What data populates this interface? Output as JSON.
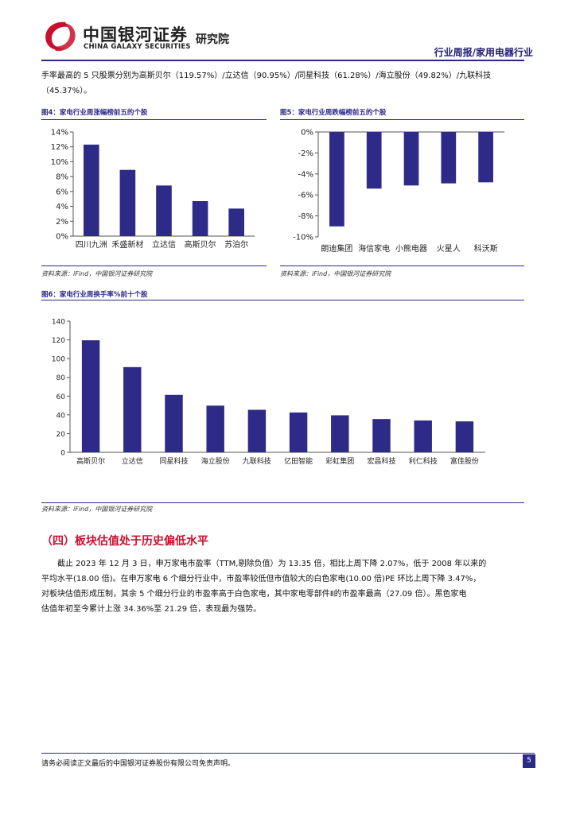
{
  "header": {
    "logo_cn": "中国银河证券",
    "logo_en": "CHINA GALAXY SECURITIES",
    "institute": "研究院",
    "report_type": "行业周报/家用电器行业",
    "colors": {
      "brand_red": "#c8102e",
      "brand_navy": "#2b2a86"
    }
  },
  "intro": {
    "line1": "手率最高的 5 只股票分别为高斯贝尔（119.57%）/立达信（90.95%）/同星科技（61.28%）/海立股份（49.82%）/九联科技",
    "line2": "（45.37%）。"
  },
  "fig4": {
    "num": "图4：",
    "title": "家电行业周涨幅榜前五的个股",
    "source": "资料来源：iFind，中国银河证券研究院"
  },
  "fig5": {
    "num": "图5：",
    "title": "家电行业周跌幅榜前五的个股",
    "source": "资料来源：iFind，中国银河证券研究院"
  },
  "fig6": {
    "num": "图6：",
    "title": "家电行业周换手率%前十个股",
    "source": "资料来源：iFind，中国银河证券研究院"
  },
  "chart_data": [
    {
      "type": "bar",
      "title": "家电行业周涨幅榜前五的个股",
      "categories": [
        "四川九洲",
        "禾盛新材",
        "立达信",
        "高斯贝尔",
        "苏泊尔"
      ],
      "values": [
        12.3,
        8.9,
        6.8,
        4.7,
        3.7
      ],
      "ylim": [
        0,
        14
      ],
      "yticks": [
        "0%",
        "2%",
        "4%",
        "6%",
        "8%",
        "10%",
        "12%",
        "14%"
      ],
      "grid": false,
      "color": "#2e2a87"
    },
    {
      "type": "bar",
      "title": "家电行业周跌幅榜前五的个股",
      "categories": [
        "朗迪集团",
        "海信家电",
        "小熊电器",
        "火星人",
        "科沃斯"
      ],
      "values": [
        -9.0,
        -5.4,
        -5.1,
        -4.9,
        -4.8
      ],
      "ylim": [
        -10,
        0
      ],
      "yticks": [
        "-10%",
        "-8%",
        "-6%",
        "-4%",
        "-2%",
        "0%"
      ],
      "grid": false,
      "color": "#2e2a87"
    },
    {
      "type": "bar",
      "title": "家电行业周换手率%前十个股",
      "categories": [
        "高斯贝尔",
        "立达信",
        "同星科技",
        "海立股份",
        "九联科技",
        "亿田智能",
        "彩虹集团",
        "宏昌科技",
        "利仁科技",
        "富佳股份"
      ],
      "values": [
        119.57,
        90.95,
        61.28,
        49.82,
        45.37,
        42.5,
        39.5,
        35.5,
        34.0,
        33.0
      ],
      "ylim": [
        0,
        140
      ],
      "yticks": [
        "0",
        "20",
        "40",
        "60",
        "80",
        "100",
        "120",
        "140"
      ],
      "grid": false,
      "color": "#2e2a87"
    }
  ],
  "section4": {
    "title": "（四）板块估值处于历史偏低水平",
    "lines": [
      "截止 2023 年 12 月 3 日，申万家电市盈率（TTM,剔除负值）为 13.35 倍，相比上周下降 2.07%，低于 2008 年以来的",
      "平均水平(18.00 倍)。在申万家电 6 个细分行业中，市盈率较低但市值较大的白色家电(10.00 倍)PE 环比上周下降 3.47%，",
      "对板块估值形成压制，其余 5 个细分行业的市盈率高于白色家电，其中家电零部件Ⅱ的市盈率最高（27.09 倍）。黑色家电",
      "估值年初至今累计上涨 34.36%至 21.29 倍，表现最为强势。"
    ]
  },
  "footer": {
    "disclaimer": "请务必阅读正文最后的中国银河证券股份有限公司免责声明。",
    "page": "5"
  }
}
